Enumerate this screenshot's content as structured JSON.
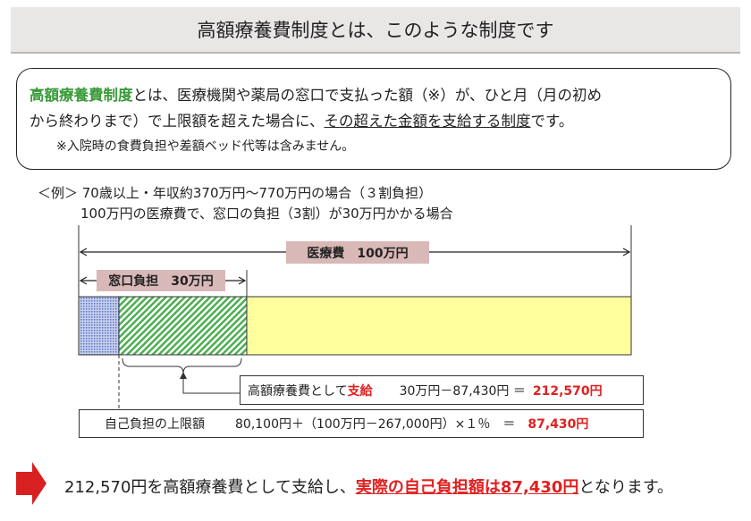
{
  "title": "高額療養費制度とは、このような制度です",
  "definition": {
    "term": "高額療養費制度",
    "line1_rest": "とは、医療機関や薬局の窓口で支払った額（※）が、ひと月（月の初め",
    "line2_a": "から終わりまで）で上限額を超えた場合に、",
    "line2_underlined": "その超えた金額を支給する制度",
    "line2_b": "です。",
    "note": "※入院時の食費負担や差額ベッド代等は含みません。"
  },
  "example": {
    "line1": "＜例＞ 70歳以上・年収約370万円～770万円の場合（３割負担）",
    "line2": "100万円の医療費で、窓口の負担（3割）が30万円かかる場合"
  },
  "diagram": {
    "total_label": "医療費　100万円",
    "window_label": "窓口負担　30万円",
    "segments": [
      {
        "name": "self-pay-limit",
        "amount": 87430,
        "color": "#8fa0d8"
      },
      {
        "name": "benefit",
        "amount": 212570,
        "color": "#5cb85c"
      },
      {
        "name": "insurance",
        "amount": 700000,
        "color": "#ffff9e"
      }
    ],
    "benefit_box": {
      "label": "高額療養費として",
      "label_red": "支給",
      "formula": "30万円－87,430円 ＝",
      "result": "212,570円"
    },
    "limit_box": {
      "label": "自己負担の上限額",
      "formula": "80,100円＋（100万円－267,000円）×１％　＝",
      "result": "87,430円"
    }
  },
  "conclusion": {
    "a": "212,570円を高額療養費として支給し、",
    "red": "実際の自己負担額は87,430円",
    "b": "となります。"
  },
  "colors": {
    "accent_red": "#e02020",
    "term_green": "#3a9a3a",
    "label_bg": "#d9b8b8"
  }
}
